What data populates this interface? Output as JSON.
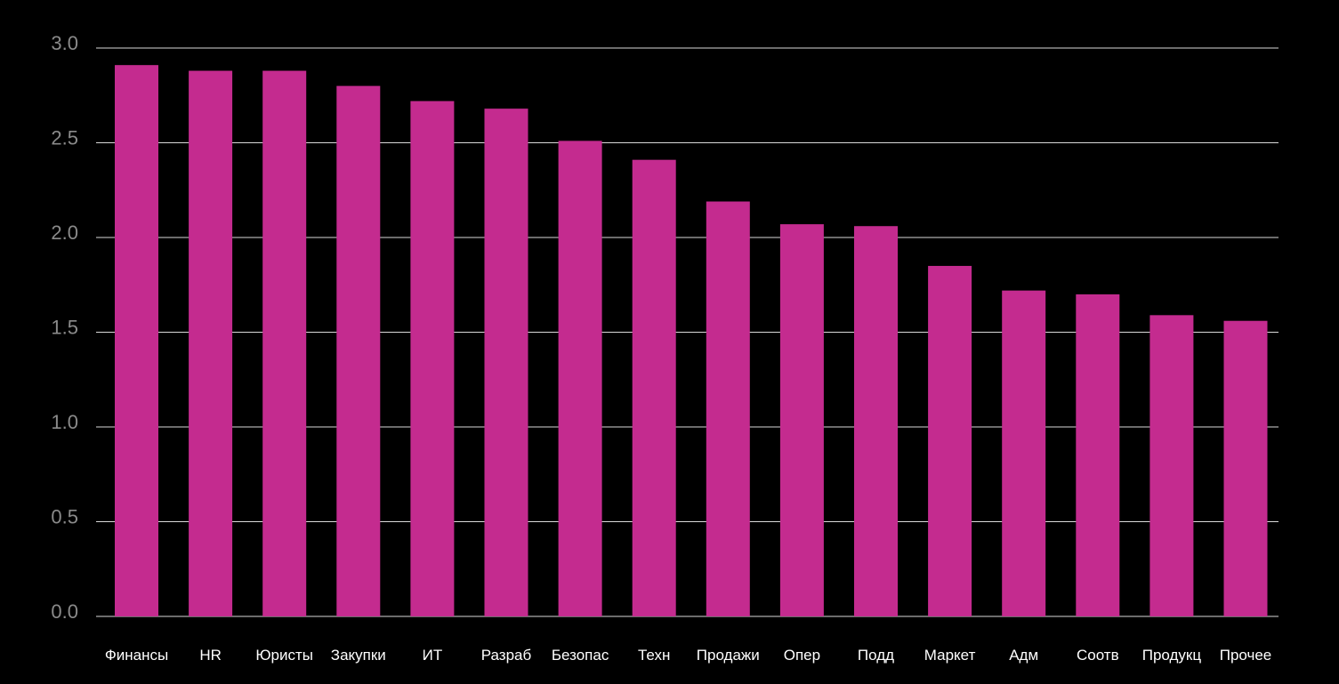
{
  "chart_data": {
    "type": "bar",
    "title": "",
    "xlabel": "",
    "ylabel": "",
    "categories": [
      "Финансы",
      "HR",
      "Юристы",
      "Закупки",
      "ИТ",
      "Разраб",
      "Безопас",
      "Техн",
      "Продажи",
      "Опер",
      "Подд",
      "Маркет",
      "Адм",
      "Соотв",
      "Продукц",
      "Прочее"
    ],
    "values": [
      2.91,
      2.88,
      2.88,
      2.8,
      2.72,
      2.68,
      2.51,
      2.41,
      2.19,
      2.07,
      2.06,
      1.85,
      1.72,
      1.7,
      1.59,
      1.56
    ],
    "ylim": [
      0,
      3.0
    ],
    "yticks": [
      "0.0",
      "0.5",
      "1.0",
      "1.5",
      "2.0",
      "2.5",
      "3.0"
    ],
    "grid": true,
    "bar_color": "#c42b8f",
    "background": "#000000"
  }
}
